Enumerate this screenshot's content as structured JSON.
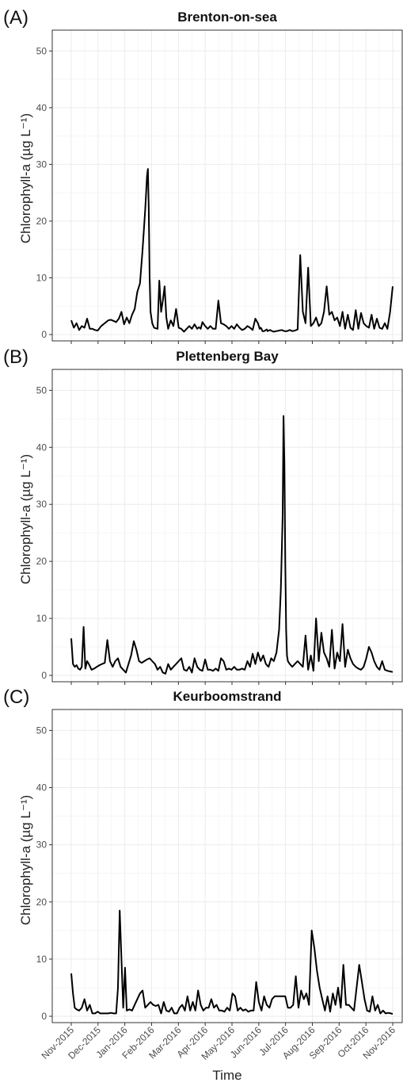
{
  "chart_data": [
    {
      "type": "line",
      "panel_label": "(A)",
      "title": "Brenton-on-sea",
      "xlabel": "",
      "ylabel": "Chlorophyll-a (µg L⁻¹)",
      "ylim": [
        0,
        52
      ],
      "yticks": [
        0,
        10,
        20,
        30,
        40,
        50
      ],
      "grid": true,
      "x": [
        0,
        3,
        6,
        9,
        12,
        15,
        18,
        21,
        24,
        27,
        30,
        34,
        38,
        42,
        45,
        48,
        51,
        54,
        57,
        60,
        63,
        66,
        69,
        72,
        75,
        78,
        81,
        84,
        86,
        87,
        88,
        89,
        90,
        92,
        94,
        98,
        100,
        102,
        104,
        106,
        108,
        110,
        113,
        116,
        119,
        122,
        125,
        128,
        131,
        134,
        137,
        140,
        143,
        145,
        147,
        149,
        152,
        155,
        158,
        161,
        164,
        167,
        170,
        173,
        176,
        179,
        182,
        185,
        188,
        191,
        194,
        197,
        200,
        203,
        206,
        209,
        212,
        214,
        215,
        216,
        217,
        218,
        219,
        220,
        221,
        222,
        223,
        224,
        226,
        228,
        230,
        233,
        236,
        239,
        242,
        245,
        248,
        251,
        254,
        257,
        260,
        263,
        266,
        269,
        272,
        275,
        278,
        281,
        284,
        287,
        290,
        293,
        296,
        299,
        302,
        305,
        308,
        311,
        314,
        317,
        320,
        323,
        326,
        329,
        332,
        335,
        338,
        341,
        344,
        347,
        350,
        353,
        356,
        359,
        362,
        365
      ],
      "y": [
        2.5,
        1.2,
        2.0,
        0.8,
        1.5,
        1.2,
        2.8,
        1.0,
        1.0,
        0.8,
        0.7,
        1.5,
        2.0,
        2.5,
        2.6,
        2.4,
        2.2,
        2.8,
        4.0,
        1.8,
        3.0,
        2.0,
        3.5,
        4.5,
        7.5,
        9.0,
        15.0,
        22.0,
        28.0,
        29.2,
        22.0,
        10.0,
        4.0,
        2.0,
        1.2,
        1.0,
        9.5,
        4.0,
        6.0,
        8.5,
        3.0,
        1.0,
        2.5,
        1.5,
        4.5,
        1.2,
        1.0,
        0.5,
        1.0,
        1.5,
        1.0,
        1.8,
        1.0,
        1.3,
        1.0,
        2.2,
        1.5,
        1.0,
        1.5,
        1.0,
        1.0,
        6.0,
        2.0,
        1.8,
        1.5,
        1.0,
        1.5,
        1.0,
        1.8,
        1.2,
        0.8,
        1.0,
        1.5,
        1.2,
        0.8,
        2.8,
        2.0,
        1.0,
        1.2,
        1.0,
        0.6,
        0.6,
        0.6,
        0.7,
        0.8,
        0.9,
        0.6,
        0.7,
        0.8,
        0.6,
        0.5,
        0.6,
        0.7,
        0.8,
        0.6,
        0.6,
        0.8,
        0.6,
        0.7,
        0.9,
        14.0,
        4.0,
        2.0,
        11.8,
        1.5,
        2.0,
        3.0,
        1.5,
        2.0,
        4.0,
        8.5,
        3.5,
        4.0,
        2.5,
        3.0,
        1.5,
        4.0,
        1.0,
        3.5,
        1.2,
        0.8,
        4.3,
        1.0,
        3.8,
        2.0,
        1.5,
        1.2,
        3.5,
        1.0,
        2.8,
        1.2,
        1.0,
        2.0,
        1.0,
        4.0,
        8.5
      ],
      "series": [
        {
          "values": "y"
        }
      ]
    },
    {
      "type": "line",
      "panel_label": "(B)",
      "title": "Plettenberg Bay",
      "xlabel": "",
      "ylabel": "Chlorophyll-a (µg L⁻¹)",
      "ylim": [
        0,
        52
      ],
      "yticks": [
        0,
        10,
        20,
        30,
        40,
        50
      ],
      "grid": true,
      "x": [
        0,
        2,
        4,
        6,
        8,
        10,
        12,
        14,
        16,
        18,
        20,
        23,
        26,
        29,
        32,
        35,
        38,
        41,
        44,
        47,
        50,
        53,
        56,
        59,
        62,
        65,
        68,
        71,
        74,
        77,
        80,
        83,
        86,
        89,
        92,
        95,
        98,
        101,
        104,
        107,
        110,
        113,
        116,
        119,
        122,
        125,
        128,
        131,
        134,
        137,
        140,
        143,
        146,
        149,
        152,
        155,
        158,
        161,
        164,
        167,
        170,
        173,
        176,
        179,
        182,
        185,
        188,
        191,
        194,
        197,
        200,
        203,
        206,
        209,
        212,
        215,
        218,
        221,
        224,
        227,
        230,
        233,
        236,
        238,
        240,
        241,
        242,
        243,
        244,
        245,
        246,
        248,
        251,
        254,
        257,
        260,
        263,
        266,
        269,
        272,
        275,
        278,
        281,
        284,
        287,
        290,
        293,
        296,
        299,
        302,
        305,
        308,
        311,
        314,
        317,
        320,
        323,
        326,
        329,
        332,
        335,
        338,
        341,
        344,
        347,
        350,
        353,
        356,
        359,
        362,
        365
      ],
      "y": [
        6.5,
        2.0,
        1.5,
        1.8,
        1.2,
        1.0,
        1.5,
        8.5,
        1.2,
        2.5,
        2.0,
        1.0,
        1.2,
        1.5,
        1.8,
        2.0,
        2.2,
        6.2,
        2.5,
        1.5,
        2.5,
        3.0,
        1.5,
        1.0,
        0.5,
        2.0,
        3.5,
        6.0,
        4.5,
        2.5,
        2.2,
        2.5,
        2.8,
        3.0,
        2.5,
        2.0,
        1.0,
        1.5,
        0.5,
        0.3,
        2.0,
        1.0,
        1.5,
        2.0,
        2.5,
        3.0,
        1.0,
        0.8,
        1.5,
        0.5,
        3.0,
        1.5,
        1.0,
        0.8,
        2.8,
        1.0,
        1.0,
        0.8,
        1.2,
        0.8,
        3.0,
        2.5,
        1.0,
        1.2,
        1.0,
        1.5,
        1.0,
        1.0,
        1.2,
        1.0,
        2.5,
        1.5,
        3.8,
        2.0,
        4.0,
        2.5,
        3.5,
        2.0,
        1.5,
        3.0,
        2.5,
        4.0,
        8.0,
        15.0,
        28.0,
        45.5,
        37.0,
        20.0,
        8.0,
        3.5,
        2.5,
        2.0,
        1.5,
        2.0,
        2.5,
        2.0,
        1.5,
        7.0,
        1.0,
        3.5,
        0.8,
        10.0,
        2.5,
        7.5,
        4.0,
        3.0,
        1.5,
        8.0,
        1.2,
        4.0,
        2.5,
        9.0,
        1.5,
        4.5,
        3.0,
        2.0,
        1.5,
        1.2,
        1.0,
        1.5,
        3.0,
        5.0,
        4.0,
        2.5,
        1.5,
        1.0,
        2.5,
        1.0,
        0.8,
        0.7,
        0.6
      ],
      "series": [
        {
          "values": "y"
        }
      ]
    },
    {
      "type": "line",
      "panel_label": "(C)",
      "title": "Keurboomstrand",
      "xlabel": "Time",
      "ylabel": "Chlorophyll-a (µg L⁻¹)",
      "ylim": [
        0,
        52
      ],
      "yticks": [
        0,
        10,
        20,
        30,
        40,
        50
      ],
      "grid": true,
      "xticks": [
        "Nov-2015",
        "Dec-2015",
        "Jan-2016",
        "Feb-2016",
        "Mar-2016",
        "Apr-2016",
        "May-2016",
        "Jun-2016",
        "Jul-2016",
        "Aug-2016",
        "Sep-2016",
        "Oct-2016",
        "Nov-2016"
      ],
      "x": [
        0,
        2,
        4,
        6,
        9,
        12,
        15,
        18,
        21,
        24,
        27,
        30,
        33,
        36,
        39,
        42,
        45,
        48,
        51,
        53,
        55,
        57,
        59,
        61,
        63,
        66,
        69,
        72,
        75,
        78,
        81,
        84,
        87,
        90,
        93,
        96,
        99,
        102,
        105,
        108,
        111,
        114,
        117,
        120,
        123,
        126,
        129,
        132,
        135,
        138,
        141,
        144,
        147,
        150,
        153,
        156,
        159,
        162,
        165,
        168,
        171,
        174,
        177,
        180,
        183,
        186,
        189,
        192,
        195,
        198,
        201,
        204,
        207,
        210,
        213,
        216,
        219,
        222,
        225,
        228,
        231,
        234,
        237,
        240,
        243,
        246,
        249,
        252,
        255,
        258,
        261,
        264,
        267,
        270,
        273,
        276,
        279,
        282,
        285,
        288,
        291,
        294,
        297,
        300,
        303,
        306,
        309,
        312,
        315,
        318,
        321,
        324,
        327,
        330,
        333,
        336,
        339,
        342,
        345,
        348,
        351,
        354,
        357,
        360,
        363,
        365
      ],
      "y": [
        7.5,
        4.0,
        1.5,
        1.2,
        1.0,
        1.5,
        3.0,
        1.0,
        2.0,
        0.5,
        0.5,
        0.8,
        0.5,
        0.5,
        0.5,
        0.5,
        0.6,
        0.5,
        0.5,
        5.0,
        18.5,
        10.0,
        1.5,
        8.5,
        1.0,
        1.2,
        1.0,
        2.0,
        3.0,
        4.0,
        4.5,
        1.5,
        2.0,
        2.5,
        2.0,
        1.8,
        2.0,
        0.5,
        2.5,
        1.0,
        0.8,
        1.5,
        0.5,
        0.5,
        1.5,
        2.0,
        1.0,
        3.5,
        1.0,
        2.5,
        1.0,
        4.5,
        2.0,
        1.0,
        1.5,
        1.5,
        3.0,
        1.5,
        2.0,
        1.0,
        1.0,
        0.8,
        1.5,
        1.0,
        4.0,
        3.5,
        1.0,
        1.5,
        1.0,
        1.2,
        0.8,
        1.0,
        1.0,
        6.0,
        2.5,
        1.0,
        3.5,
        2.0,
        1.5,
        3.0,
        3.5,
        3.5,
        3.5,
        3.5,
        3.5,
        1.5,
        1.5,
        2.0,
        7.0,
        1.5,
        4.5,
        3.0,
        4.0,
        2.0,
        15.0,
        12.0,
        8.0,
        5.0,
        3.0,
        1.0,
        3.5,
        0.8,
        4.0,
        2.0,
        5.0,
        1.5,
        9.0,
        2.0,
        2.0,
        1.5,
        1.0,
        5.0,
        9.0,
        6.0,
        3.0,
        1.0,
        0.8,
        3.5,
        1.0,
        2.0,
        0.5,
        1.0,
        0.5,
        0.6,
        0.5,
        0.4
      ],
      "series": [
        {
          "values": "y"
        }
      ]
    }
  ]
}
